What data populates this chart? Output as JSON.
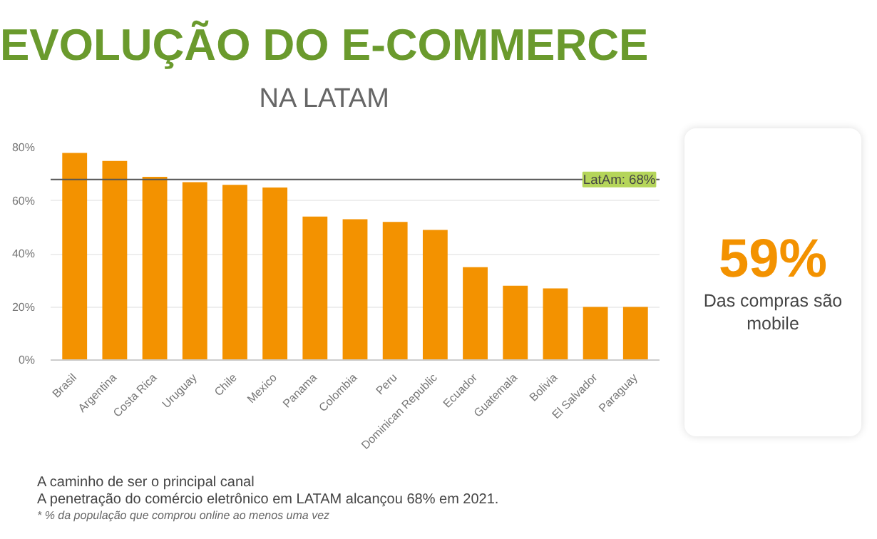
{
  "chart_data": {
    "type": "bar",
    "title": "EVOLUÇÃO DO E-COMMERCE",
    "subtitle": "NA LATAM",
    "categories": [
      "Brasil",
      "Argentina",
      "Costa Rica",
      "Uruguay",
      "Chile",
      "Mexico",
      "Panama",
      "Colombia",
      "Peru",
      "Dominican Republic",
      "Ecuador",
      "Guatemala",
      "Bolivia",
      "El Salvador",
      "Paraguay"
    ],
    "values": [
      78,
      75,
      69,
      67,
      66,
      65,
      54,
      53,
      52,
      49,
      35,
      28,
      27,
      20,
      20
    ],
    "color": "#f39200",
    "ylim": [
      0,
      80
    ],
    "yticks": [
      {
        "value": 0,
        "label": "0%"
      },
      {
        "value": 20,
        "label": "20%"
      },
      {
        "value": 40,
        "label": "40%"
      },
      {
        "value": 60,
        "label": "60%"
      },
      {
        "value": 80,
        "label": "80%"
      }
    ],
    "grid": "y",
    "ref_lines": [
      {
        "axis": "y",
        "value": 68,
        "label": "LatAm: 68%",
        "color": "#555555"
      }
    ],
    "annotations": [
      "59%",
      "Das compras são mobile",
      "A caminho de ser o principal canal",
      "A penetração do comércio eletrônico em LATAM alcançou 68% em 2021.",
      "* % da população  que comprou online ao menos uma vez"
    ]
  }
}
